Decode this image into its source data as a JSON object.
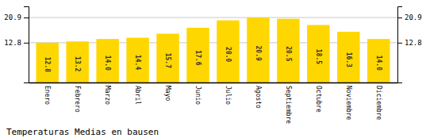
{
  "chart_data": {
    "type": "bar",
    "title": "Temperaturas Medias en bausen",
    "categories": [
      "Enero",
      "Febrero",
      "Marzo",
      "Abril",
      "Mayo",
      "Junio",
      "Julio",
      "Agosto",
      "Septiembre",
      "Octubre",
      "Noviembre",
      "Diciembre"
    ],
    "values": [
      12.8,
      13.2,
      14.0,
      14.4,
      15.7,
      17.6,
      20.0,
      20.9,
      20.5,
      18.5,
      16.3,
      14.0
    ],
    "value_labels": [
      "12.8",
      "13.2",
      "14.0",
      "14.4",
      "15.7",
      "17.6",
      "20.0",
      "20.9",
      "20.5",
      "18.5",
      "16.3",
      "14.0"
    ],
    "color": "#FFD700",
    "ylim": [
      0.0,
      24.5
    ],
    "yticks": [
      12.8,
      20.9
    ],
    "y2lim": [
      0.0,
      24.5
    ],
    "y2ticks": [
      12.8,
      20.9
    ],
    "grid": true,
    "data_labels": true
  }
}
